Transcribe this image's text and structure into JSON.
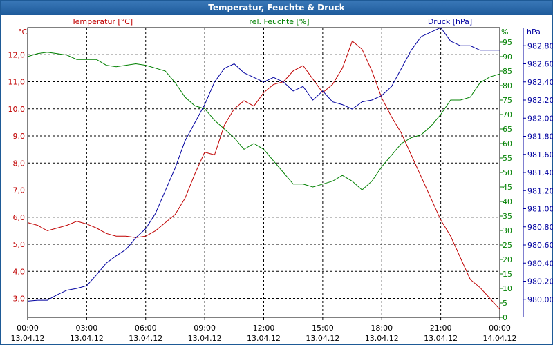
{
  "title": "Temperatur, Feuchte & Druck",
  "colors": {
    "temperature": "#c00000",
    "humidity": "#008000",
    "pressure": "#0000a0",
    "grid": "#000000",
    "title_bg": "#2a68a8"
  },
  "chart_data": {
    "type": "line",
    "title": "Temperatur, Feuchte & Druck",
    "x_ticks": [
      {
        "time": "00:00",
        "date": "13.04.12"
      },
      {
        "time": "03:00",
        "date": "13.04.12"
      },
      {
        "time": "06:00",
        "date": "13.04.12"
      },
      {
        "time": "09:00",
        "date": "13.04.12"
      },
      {
        "time": "12:00",
        "date": "13.04.12"
      },
      {
        "time": "15:00",
        "date": "13.04.12"
      },
      {
        "time": "18:00",
        "date": "13.04.12"
      },
      {
        "time": "21:00",
        "date": "13.04.12"
      },
      {
        "time": "00:00",
        "date": "14.04.12"
      }
    ],
    "x_range_hours": [
      0,
      24
    ],
    "axes": {
      "temperature": {
        "label": "Temperatur [°C]",
        "unit": "°C",
        "range": [
          2.3,
          13.0
        ],
        "ticks": [
          "3,0",
          "4,0",
          "5,0",
          "6,0",
          "7,0",
          "8,0",
          "9,0",
          "10,0",
          "11,0",
          "12,0"
        ]
      },
      "humidity": {
        "label": "rel. Feuchte [%]",
        "unit": "%",
        "range": [
          0,
          100
        ],
        "ticks": [
          "0",
          "5",
          "10",
          "15",
          "20",
          "25",
          "30",
          "35",
          "40",
          "45",
          "50",
          "55",
          "60",
          "65",
          "70",
          "75",
          "80",
          "85",
          "90",
          "95"
        ]
      },
      "pressure": {
        "label": "Druck [hPa]",
        "unit": "hPa",
        "range": [
          979.8,
          983.0
        ],
        "ticks": [
          "980,00",
          "980,20",
          "980,40",
          "980,60",
          "980,80",
          "981,00",
          "981,20",
          "981,40",
          "981,60",
          "981,80",
          "982,00",
          "982,20",
          "982,40",
          "982,60",
          "982,80"
        ]
      }
    },
    "series": [
      {
        "name": "Temperatur [°C]",
        "axis": "temperature",
        "x": [
          0,
          0.5,
          1,
          1.5,
          2,
          2.5,
          3,
          3.5,
          4,
          4.5,
          5,
          5.5,
          6,
          6.5,
          7,
          7.5,
          8,
          8.5,
          9,
          9.5,
          10,
          10.5,
          11,
          11.5,
          12,
          12.5,
          13,
          13.5,
          14,
          14.5,
          15,
          15.5,
          16,
          16.5,
          17,
          17.5,
          18,
          18.5,
          19,
          19.5,
          20,
          20.5,
          21,
          21.5,
          22,
          22.5,
          23,
          23.5,
          24
        ],
        "y": [
          5.8,
          5.7,
          5.5,
          5.6,
          5.7,
          5.85,
          5.75,
          5.6,
          5.4,
          5.3,
          5.3,
          5.25,
          5.3,
          5.5,
          5.8,
          6.1,
          6.7,
          7.6,
          8.4,
          8.3,
          9.4,
          10.0,
          10.3,
          10.1,
          10.6,
          10.9,
          11.0,
          11.4,
          11.6,
          11.1,
          10.6,
          10.9,
          11.5,
          12.5,
          12.2,
          11.4,
          10.4,
          9.7,
          9.1,
          8.3,
          7.5,
          6.7,
          5.9,
          5.3,
          4.5,
          3.7,
          3.4,
          3.0,
          2.6
        ]
      },
      {
        "name": "rel. Feuchte [%]",
        "axis": "humidity",
        "x": [
          0,
          0.5,
          1,
          1.5,
          2,
          2.5,
          3,
          3.5,
          4,
          4.5,
          5,
          5.5,
          6,
          6.5,
          7,
          7.5,
          8,
          8.5,
          9,
          9.5,
          10,
          10.5,
          11,
          11.5,
          12,
          12.5,
          13,
          13.5,
          14,
          14.5,
          15,
          15.5,
          16,
          16.5,
          17,
          17.5,
          18,
          18.5,
          19,
          19.5,
          20,
          20.5,
          21,
          21.5,
          22,
          22.5,
          23,
          23.5,
          24
        ],
        "y": [
          90,
          91,
          91.5,
          91,
          90.5,
          89,
          89,
          89,
          87,
          86.5,
          87,
          87.5,
          87,
          86,
          85,
          81,
          76,
          73,
          72,
          68,
          65,
          62,
          58,
          60,
          58,
          54,
          50,
          46,
          46,
          45,
          46,
          47,
          49,
          47,
          44,
          47,
          52,
          56,
          60,
          62,
          63,
          66,
          70,
          75,
          75,
          76,
          81,
          83,
          84
        ]
      },
      {
        "name": "Druck [hPa]",
        "axis": "pressure",
        "x": [
          0,
          0.5,
          1,
          1.5,
          2,
          2.5,
          3,
          3.5,
          4,
          4.5,
          5,
          5.5,
          6,
          6.5,
          7,
          7.5,
          8,
          8.5,
          9,
          9.5,
          10,
          10.5,
          11,
          11.5,
          12,
          12.5,
          13,
          13.5,
          14,
          14.5,
          15,
          15.5,
          16,
          16.5,
          17,
          17.5,
          18,
          18.5,
          19,
          19.5,
          20,
          20.5,
          21,
          21.5,
          22,
          22.5,
          23,
          23.5,
          24
        ],
        "y": [
          979.98,
          979.99,
          979.99,
          980.05,
          980.1,
          980.12,
          980.15,
          980.27,
          980.4,
          980.48,
          980.55,
          980.68,
          980.78,
          980.95,
          981.2,
          981.45,
          981.75,
          981.95,
          982.15,
          982.4,
          982.55,
          982.6,
          982.5,
          982.45,
          982.4,
          982.45,
          982.4,
          982.3,
          982.35,
          982.2,
          982.3,
          982.18,
          982.15,
          982.1,
          982.18,
          982.2,
          982.25,
          982.35,
          982.55,
          982.75,
          982.9,
          982.95,
          983.0,
          982.85,
          982.8,
          982.8,
          982.75,
          982.75,
          982.75
        ]
      }
    ],
    "grid": true
  }
}
